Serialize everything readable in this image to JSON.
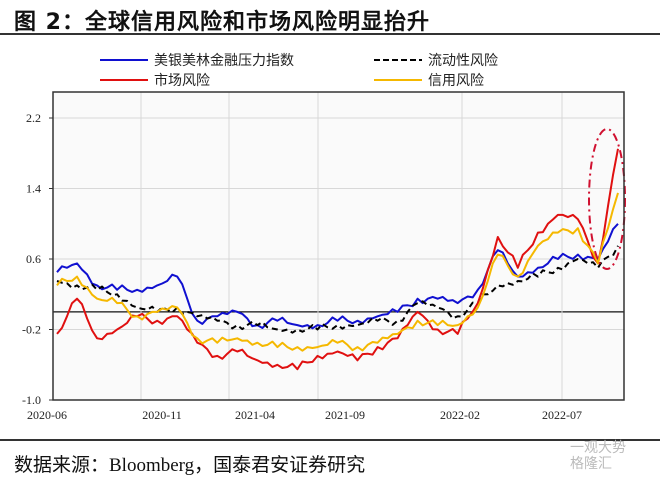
{
  "header": {
    "title": "图 2：全球信用风险和市场风险明显抬升"
  },
  "footer": {
    "source": "数据来源：Bloomberg，国泰君安证券研究",
    "watermark_line1": "一观大势",
    "watermark_line2": "格隆汇"
  },
  "chart_data": {
    "type": "line",
    "title": "图 2：全球信用风险和市场风险明显抬升",
    "xlabel": "",
    "ylabel": "",
    "ylim": [
      -1.0,
      2.6
    ],
    "yticks": [
      -1.0,
      -0.2,
      0.6,
      1.4,
      2.2
    ],
    "ytick_labels": [
      "-1.0",
      "-0.2",
      "0.6",
      "1.4",
      "2.2"
    ],
    "xtick_labels": [
      "2020-06",
      "2020-11",
      "2021-04",
      "2021-09",
      "2022-02",
      "2022-07"
    ],
    "grid": true,
    "legend_position": "top",
    "annotation": "red dash-dot ellipse highlighting recent surge (2022-09 to 2022-10)",
    "x": [
      "2020-06",
      "2020-07",
      "2020-08",
      "2020-09",
      "2020-10",
      "2020-11",
      "2020-12",
      "2021-01",
      "2021-02",
      "2021-03",
      "2021-04",
      "2021-05",
      "2021-06",
      "2021-07",
      "2021-08",
      "2021-09",
      "2021-10",
      "2021-11",
      "2021-12",
      "2022-01",
      "2022-02",
      "2022-03",
      "2022-04",
      "2022-05",
      "2022-06",
      "2022-07",
      "2022-08",
      "2022-09",
      "2022-10"
    ],
    "series": [
      {
        "name": "美银美林金融压力指数",
        "color": "#1010d0",
        "style": "solid",
        "values": [
          0.45,
          0.55,
          0.3,
          0.25,
          0.25,
          0.3,
          0.4,
          -0.1,
          -0.05,
          0.0,
          -0.15,
          -0.1,
          -0.15,
          -0.15,
          -0.1,
          -0.1,
          -0.05,
          0.0,
          0.15,
          0.15,
          0.1,
          0.25,
          0.7,
          0.4,
          0.5,
          0.6,
          0.65,
          0.6,
          1.0
        ]
      },
      {
        "name": "流动性风险",
        "color": "#000000",
        "style": "dashed",
        "values": [
          0.35,
          0.3,
          0.25,
          0.2,
          0.05,
          0.0,
          0.05,
          -0.05,
          -0.1,
          -0.15,
          -0.15,
          -0.2,
          -0.2,
          -0.2,
          -0.15,
          -0.15,
          -0.1,
          -0.1,
          0.1,
          0.05,
          -0.05,
          0.1,
          0.3,
          0.35,
          0.4,
          0.5,
          0.6,
          0.5,
          0.75
        ]
      },
      {
        "name": "市场风险",
        "color": "#e01010",
        "style": "solid",
        "values": [
          -0.25,
          0.15,
          -0.3,
          -0.2,
          -0.05,
          -0.1,
          -0.05,
          -0.35,
          -0.5,
          -0.45,
          -0.55,
          -0.6,
          -0.65,
          -0.5,
          -0.45,
          -0.55,
          -0.4,
          -0.3,
          0.0,
          -0.2,
          -0.25,
          0.1,
          0.85,
          0.5,
          0.9,
          1.1,
          1.05,
          0.55,
          1.85
        ]
      },
      {
        "name": "信用风险",
        "color": "#f5b800",
        "style": "solid",
        "values": [
          0.3,
          0.4,
          0.15,
          0.1,
          -0.05,
          0.0,
          0.05,
          -0.3,
          -0.35,
          -0.3,
          -0.35,
          -0.4,
          -0.4,
          -0.4,
          -0.35,
          -0.4,
          -0.35,
          -0.25,
          -0.1,
          -0.15,
          -0.15,
          0.05,
          0.65,
          0.4,
          0.75,
          0.9,
          0.95,
          0.55,
          1.35
        ]
      }
    ]
  }
}
